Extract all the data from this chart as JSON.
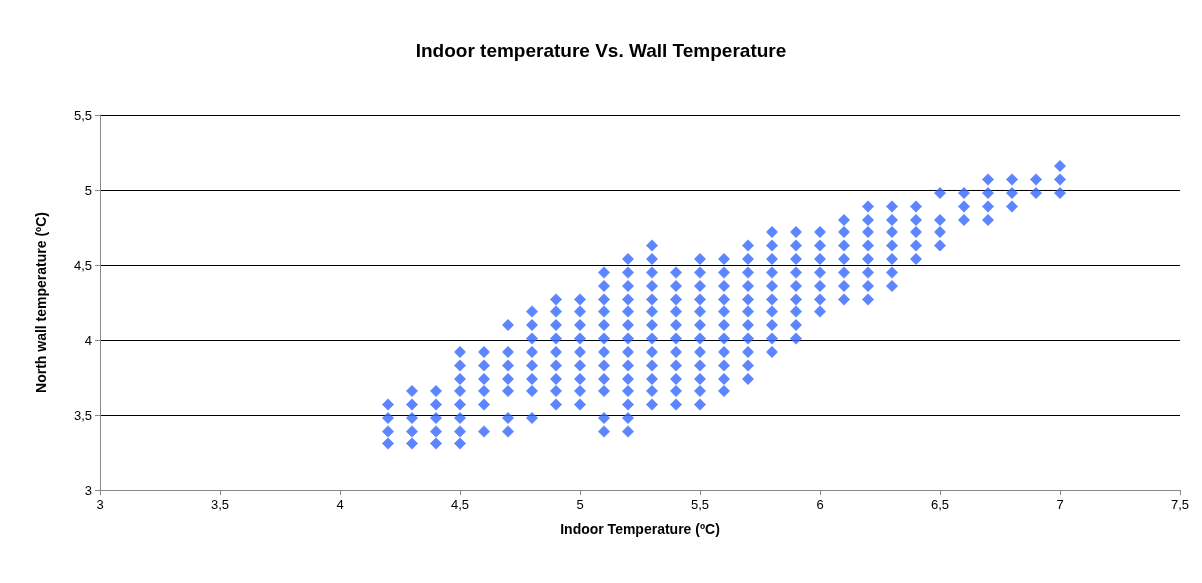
{
  "chart_data": {
    "type": "scatter",
    "title": "Indoor temperature Vs. Wall Temperature",
    "xlabel": "Indoor Temperature (ºC)",
    "ylabel": "North wall temperature (ºC)",
    "xlim": [
      3,
      7.5
    ],
    "xticks": [
      3,
      {
        "value": 3.5,
        "label": "3,5"
      },
      4,
      {
        "value": 4.5,
        "label": "4,5"
      },
      5,
      {
        "value": 5.5,
        "label": "5,5"
      },
      6,
      {
        "value": 6.5,
        "label": "6,5"
      },
      7,
      {
        "value": 7.5,
        "label": "7,5"
      }
    ],
    "ylim": [
      3,
      5.5
    ],
    "yticks": [
      3,
      {
        "value": 3.5,
        "label": "3,5"
      },
      4,
      {
        "value": 4.5,
        "label": "4,5"
      },
      5,
      {
        "value": 5.5,
        "label": "5,5"
      }
    ],
    "grid": "y",
    "marker": "diamond",
    "series": [
      {
        "color": "#3366ff",
        "x": [
          4.2,
          4.2,
          4.2,
          4.2,
          4.3,
          4.3,
          4.3,
          4.3,
          4.3,
          4.4,
          4.4,
          4.4,
          4.4,
          4.4,
          4.5,
          4.5,
          4.5,
          4.5,
          4.5,
          4.5,
          4.5,
          4.5,
          4.6,
          4.6,
          4.6,
          4.6,
          4.6,
          4.6,
          4.7,
          4.7,
          4.7,
          4.7,
          4.7,
          4.7,
          4.7,
          4.8,
          4.8,
          4.8,
          4.8,
          4.8,
          4.8,
          4.8,
          4.8,
          4.9,
          4.9,
          4.9,
          4.9,
          4.9,
          4.9,
          4.9,
          4.9,
          4.9,
          5.0,
          5.0,
          5.0,
          5.0,
          5.0,
          5.0,
          5.0,
          5.0,
          5.0,
          5.1,
          5.1,
          5.1,
          5.1,
          5.1,
          5.1,
          5.1,
          5.1,
          5.1,
          5.1,
          5.1,
          5.1,
          5.2,
          5.2,
          5.2,
          5.2,
          5.2,
          5.2,
          5.2,
          5.2,
          5.2,
          5.2,
          5.2,
          5.2,
          5.2,
          5.2,
          5.3,
          5.3,
          5.3,
          5.3,
          5.3,
          5.3,
          5.3,
          5.3,
          5.3,
          5.3,
          5.3,
          5.3,
          5.3,
          5.4,
          5.4,
          5.4,
          5.4,
          5.4,
          5.4,
          5.4,
          5.4,
          5.4,
          5.4,
          5.4,
          5.5,
          5.5,
          5.5,
          5.5,
          5.5,
          5.5,
          5.5,
          5.5,
          5.5,
          5.5,
          5.5,
          5.5,
          5.6,
          5.6,
          5.6,
          5.6,
          5.6,
          5.6,
          5.6,
          5.6,
          5.6,
          5.6,
          5.6,
          5.7,
          5.7,
          5.7,
          5.7,
          5.7,
          5.7,
          5.7,
          5.7,
          5.7,
          5.7,
          5.7,
          5.8,
          5.8,
          5.8,
          5.8,
          5.8,
          5.8,
          5.8,
          5.8,
          5.8,
          5.8,
          5.9,
          5.9,
          5.9,
          5.9,
          5.9,
          5.9,
          5.9,
          5.9,
          5.9,
          6.0,
          6.0,
          6.0,
          6.0,
          6.0,
          6.0,
          6.0,
          6.1,
          6.1,
          6.1,
          6.1,
          6.1,
          6.1,
          6.1,
          6.2,
          6.2,
          6.2,
          6.2,
          6.2,
          6.2,
          6.2,
          6.2,
          6.3,
          6.3,
          6.3,
          6.3,
          6.3,
          6.3,
          6.3,
          6.4,
          6.4,
          6.4,
          6.4,
          6.4,
          6.5,
          6.5,
          6.5,
          6.5,
          6.6,
          6.6,
          6.6,
          6.7,
          6.7,
          6.7,
          6.7,
          6.8,
          6.8,
          6.8,
          6.9,
          6.9,
          7.0,
          7.0,
          7.0
        ],
        "values": [
          3.31,
          3.39,
          3.48,
          3.57,
          3.31,
          3.39,
          3.48,
          3.57,
          3.66,
          3.31,
          3.39,
          3.48,
          3.57,
          3.66,
          3.31,
          3.39,
          3.48,
          3.57,
          3.66,
          3.74,
          3.83,
          3.92,
          3.39,
          3.57,
          3.66,
          3.74,
          3.83,
          3.92,
          3.39,
          3.48,
          3.66,
          3.74,
          3.83,
          3.92,
          4.1,
          3.48,
          3.66,
          3.74,
          3.83,
          3.92,
          4.01,
          4.1,
          4.19,
          3.57,
          3.66,
          3.74,
          3.83,
          3.92,
          4.01,
          4.1,
          4.19,
          4.27,
          3.57,
          3.66,
          3.74,
          3.83,
          3.92,
          4.01,
          4.1,
          4.19,
          4.27,
          3.39,
          3.48,
          3.66,
          3.74,
          3.83,
          3.92,
          4.01,
          4.1,
          4.19,
          4.27,
          4.36,
          4.45,
          3.39,
          3.48,
          3.57,
          3.66,
          3.74,
          3.83,
          3.92,
          4.01,
          4.1,
          4.19,
          4.27,
          4.36,
          4.45,
          4.54,
          3.57,
          3.66,
          3.74,
          3.83,
          3.92,
          4.01,
          4.1,
          4.19,
          4.27,
          4.36,
          4.45,
          4.54,
          4.63,
          3.57,
          3.66,
          3.74,
          3.83,
          3.92,
          4.01,
          4.1,
          4.19,
          4.27,
          4.36,
          4.45,
          3.57,
          3.66,
          3.74,
          3.83,
          3.92,
          4.01,
          4.1,
          4.19,
          4.27,
          4.36,
          4.45,
          4.54,
          3.66,
          3.74,
          3.83,
          3.92,
          4.01,
          4.1,
          4.19,
          4.27,
          4.36,
          4.45,
          4.54,
          3.74,
          3.83,
          3.92,
          4.01,
          4.1,
          4.19,
          4.27,
          4.36,
          4.45,
          4.54,
          4.63,
          3.92,
          4.01,
          4.1,
          4.19,
          4.27,
          4.36,
          4.45,
          4.54,
          4.63,
          4.72,
          4.01,
          4.1,
          4.19,
          4.27,
          4.36,
          4.45,
          4.54,
          4.63,
          4.72,
          4.19,
          4.27,
          4.36,
          4.45,
          4.54,
          4.63,
          4.72,
          4.27,
          4.36,
          4.45,
          4.54,
          4.63,
          4.72,
          4.8,
          4.27,
          4.36,
          4.45,
          4.54,
          4.63,
          4.72,
          4.8,
          4.89,
          4.36,
          4.45,
          4.54,
          4.63,
          4.72,
          4.8,
          4.89,
          4.54,
          4.63,
          4.72,
          4.8,
          4.89,
          4.63,
          4.72,
          4.8,
          4.98,
          4.8,
          4.89,
          4.98,
          4.8,
          4.89,
          4.98,
          5.07,
          4.89,
          4.98,
          5.07,
          4.98,
          5.07,
          4.98,
          5.07,
          5.16
        ]
      }
    ]
  }
}
